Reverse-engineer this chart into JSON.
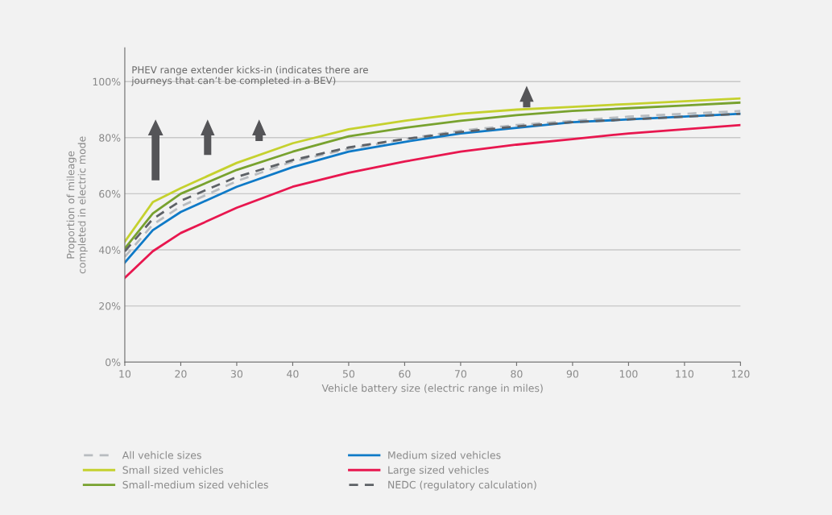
{
  "chart_data": {
    "type": "line",
    "xlabel": "Vehicle battery size (electric range in miles)",
    "ylabel": "Proportion of mileage\ncompleted in electric mode",
    "x": [
      10,
      15,
      20,
      30,
      40,
      50,
      60,
      70,
      80,
      90,
      100,
      110,
      120
    ],
    "series": [
      {
        "name": "All vehicle sizes",
        "color": "#b8bcc0",
        "line_style": "dashed",
        "values": [
          37.5,
          49,
          55.5,
          64.5,
          71.5,
          76,
          79.5,
          82.5,
          84.5,
          86,
          87.5,
          88.5,
          89.5
        ]
      },
      {
        "name": "Small sized vehicles",
        "color": "#c5d12e",
        "values": [
          42.9,
          57,
          62,
          71,
          78,
          83,
          86,
          88.5,
          90,
          91,
          92,
          93,
          94
        ]
      },
      {
        "name": "Small-medium sized vehicles",
        "color": "#78a22f",
        "values": [
          40.5,
          53,
          60,
          68.5,
          75,
          80.5,
          83.5,
          86,
          88,
          89.5,
          90.5,
          91.5,
          92.5
        ]
      },
      {
        "name": "Medium sized vehicles",
        "color": "#0f7ac7",
        "values": [
          35.5,
          47,
          53.5,
          62.5,
          69.5,
          75,
          78.5,
          81.5,
          83.5,
          85.5,
          86.5,
          87.5,
          88.5
        ]
      },
      {
        "name": "Large sized vehicles",
        "color": "#e8174f",
        "values": [
          30,
          39.5,
          46,
          55,
          62.5,
          67.5,
          71.5,
          75,
          77.5,
          79.5,
          81.5,
          83,
          84.5
        ]
      },
      {
        "name": "NEDC (regulatory calculation)",
        "color": "#5d6166",
        "line_style": "dashed",
        "values": [
          39.5,
          51,
          57.5,
          66,
          72,
          76.5,
          79.5,
          82,
          84,
          85.5,
          86.5,
          87.5,
          88.5
        ]
      }
    ],
    "xlim": [
      10,
      120
    ],
    "xticks": [
      10,
      20,
      30,
      40,
      50,
      60,
      70,
      80,
      90,
      100,
      110,
      120
    ],
    "ylim": [
      0,
      112
    ],
    "yticks": [
      {
        "value": 0,
        "label": "0%"
      },
      {
        "value": 20,
        "label": "20%"
      },
      {
        "value": 40,
        "label": "40%"
      },
      {
        "value": 60,
        "label": "60%"
      },
      {
        "value": 80,
        "label": "80%"
      },
      {
        "value": 100,
        "label": "100%"
      }
    ],
    "grid": "y",
    "legend": "bottom",
    "line_style": "solid",
    "marker": "none",
    "annotations": [
      "PHEV range extender kicks-in (indicates there are\njourneys that can’t be completed in a BEV)"
    ]
  }
}
